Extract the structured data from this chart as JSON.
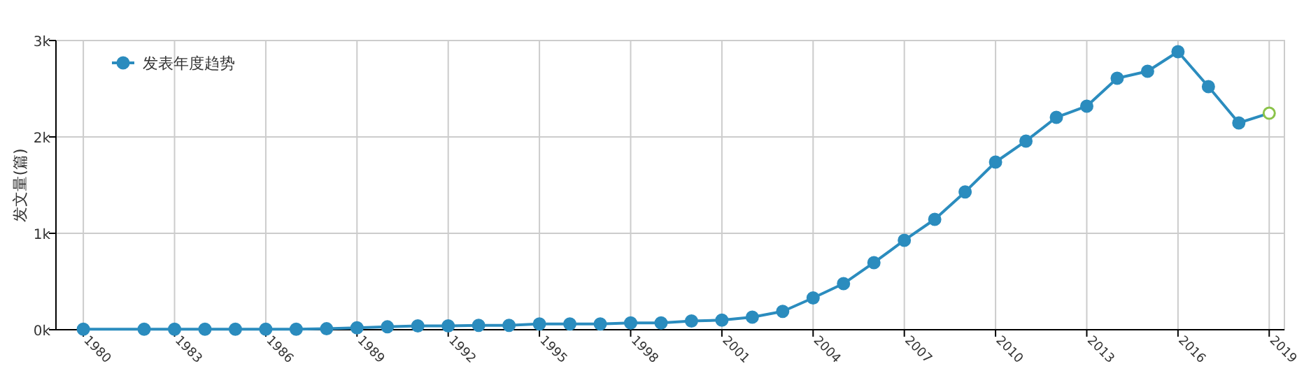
{
  "chart_data": {
    "type": "line",
    "ylabel": "发文量(篇)",
    "legend": "top left",
    "grid": true,
    "marker": "circle",
    "line_style": "solid",
    "x": [
      1980,
      1982,
      1983,
      1984,
      1985,
      1986,
      1987,
      1988,
      1989,
      1990,
      1991,
      1992,
      1993,
      1994,
      1995,
      1996,
      1997,
      1998,
      1999,
      2000,
      2001,
      2002,
      2003,
      2004,
      2005,
      2006,
      2007,
      2008,
      2009,
      2010,
      2011,
      2012,
      2013,
      2014,
      2015,
      2016,
      2017,
      2018,
      2019
    ],
    "xlim": [
      1979.1,
      2019.5
    ],
    "xticks": [
      1980,
      1983,
      1986,
      1989,
      1992,
      1995,
      1998,
      2001,
      2004,
      2007,
      2010,
      2013,
      2016,
      2019
    ],
    "ylim": [
      0,
      3000
    ],
    "yticks": [
      {
        "value": 0,
        "label": "0k"
      },
      {
        "value": 1000,
        "label": "1k"
      },
      {
        "value": 2000,
        "label": "2k"
      },
      {
        "value": 3000,
        "label": "3k"
      }
    ],
    "series": [
      {
        "name": "发表年度趋势",
        "color": "#2b8cbe",
        "colors": [
          "#2b8cbe",
          "#2b8cbe",
          "#2b8cbe",
          "#2b8cbe",
          "#2b8cbe",
          "#2b8cbe",
          "#2b8cbe",
          "#2b8cbe",
          "#2b8cbe",
          "#2b8cbe",
          "#2b8cbe",
          "#2b8cbe",
          "#2b8cbe",
          "#2b8cbe",
          "#2b8cbe",
          "#2b8cbe",
          "#2b8cbe",
          "#2b8cbe",
          "#2b8cbe",
          "#2b8cbe",
          "#2b8cbe",
          "#2b8cbe",
          "#2b8cbe",
          "#2b8cbe",
          "#2b8cbe",
          "#2b8cbe",
          "#2b8cbe",
          "#2b8cbe",
          "#2b8cbe",
          "#2b8cbe",
          "#2b8cbe",
          "#2b8cbe",
          "#2b8cbe",
          "#2b8cbe",
          "#2b8cbe",
          "#2b8cbe",
          "#2b8cbe",
          "#2b8cbe",
          "#8bc34a"
        ],
        "values": [
          5,
          5,
          5,
          5,
          5,
          5,
          5,
          10,
          20,
          30,
          40,
          40,
          45,
          45,
          60,
          60,
          60,
          70,
          70,
          90,
          100,
          130,
          190,
          330,
          478,
          696,
          928,
          1145,
          1430,
          1739,
          1957,
          2203,
          2319,
          2609,
          2681,
          2884,
          2522,
          2145,
          2246
        ]
      }
    ]
  }
}
